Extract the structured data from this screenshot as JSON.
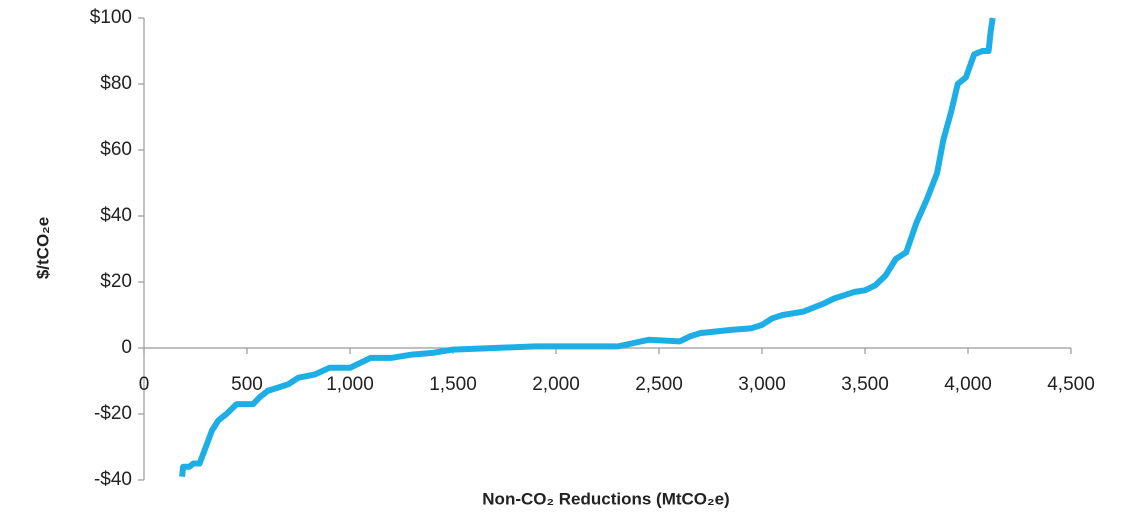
{
  "chart_data": {
    "type": "line",
    "x_label": "Non-CO₂ Reductions (MtCO₂e)",
    "y_label": "$/tCO₂e",
    "color": "#1eaee6",
    "grid": false,
    "x": [
      185,
      190,
      220,
      240,
      270,
      300,
      330,
      360,
      400,
      450,
      530,
      560,
      600,
      650,
      700,
      750,
      830,
      900,
      1000,
      1100,
      1200,
      1300,
      1400,
      1500,
      1700,
      1900,
      2100,
      2300,
      2450,
      2600,
      2650,
      2700,
      2850,
      2950,
      3000,
      3050,
      3100,
      3200,
      3300,
      3350,
      3400,
      3450,
      3500,
      3550,
      3600,
      3650,
      3700,
      3750,
      3800,
      3850,
      3880,
      3920,
      3950,
      3990,
      4030,
      4070,
      4100,
      4110,
      4120
    ],
    "values": [
      -39,
      -36,
      -36,
      -35,
      -35,
      -30,
      -25,
      -22,
      -20,
      -17,
      -17,
      -15,
      -13,
      -12,
      -11,
      -9,
      -8,
      -6,
      -6,
      -3,
      -3,
      -2,
      -1.5,
      -0.5,
      0,
      0.5,
      0.5,
      0.5,
      2.5,
      2,
      3.5,
      4.5,
      5.5,
      6,
      7,
      9,
      10,
      11,
      13.5,
      15,
      16,
      17,
      17.5,
      19,
      22,
      27,
      29,
      38,
      45,
      53,
      63,
      72,
      80,
      82,
      89,
      90,
      90,
      96,
      100
    ],
    "xlim": [
      0,
      4500
    ],
    "xticks": [
      0,
      500,
      {
        "value": 1000,
        "label": "1,000"
      },
      {
        "value": 1500,
        "label": "1,500"
      },
      {
        "value": 2000,
        "label": "2,000"
      },
      {
        "value": 2500,
        "label": "2,500"
      },
      {
        "value": 3000,
        "label": "3,000"
      },
      {
        "value": 3500,
        "label": "3,500"
      },
      {
        "value": 4000,
        "label": "4,000"
      },
      {
        "value": 4500,
        "label": "4,500"
      }
    ],
    "ylim": [
      -40,
      100
    ],
    "yticks": [
      {
        "value": -40,
        "label": "-$40"
      },
      {
        "value": -20,
        "label": "-$20"
      },
      0,
      {
        "value": 20,
        "label": "$20"
      },
      {
        "value": 40,
        "label": "$40"
      },
      {
        "value": 60,
        "label": "$60"
      },
      {
        "value": 80,
        "label": "$80"
      },
      {
        "value": 100,
        "label": "$100"
      }
    ]
  }
}
